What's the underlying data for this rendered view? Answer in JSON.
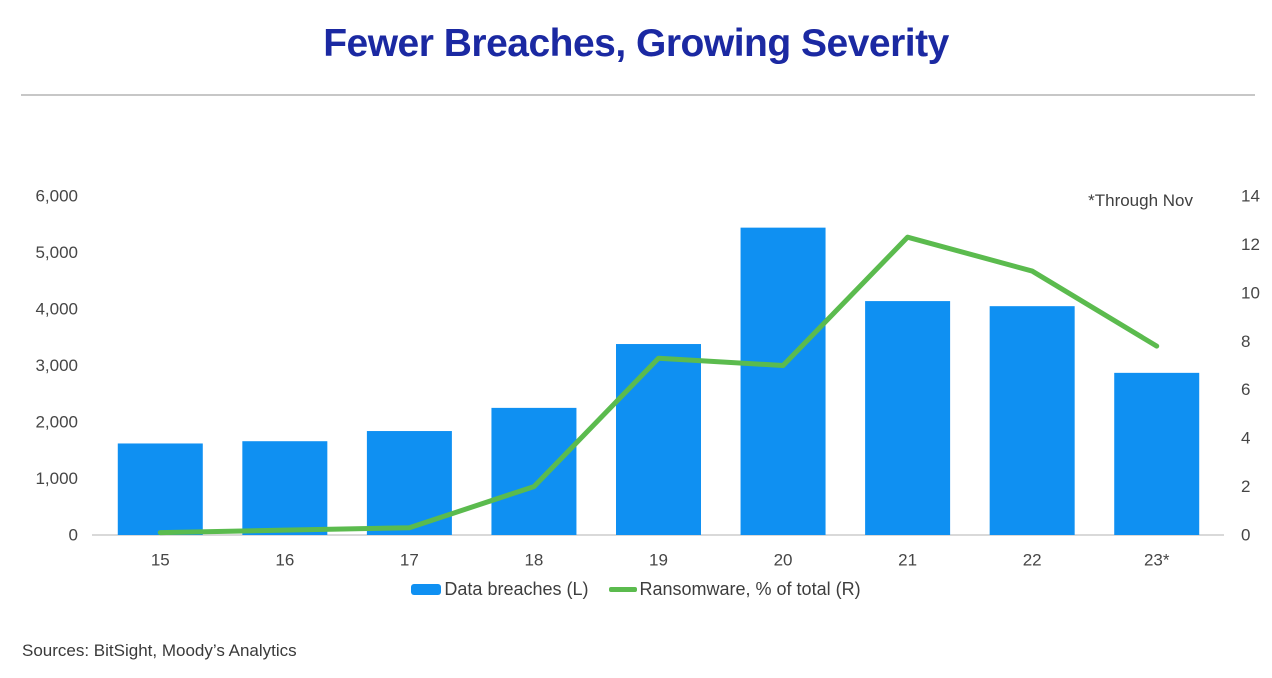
{
  "title": "Fewer Breaches, Growing Severity",
  "annotation": "*Through Nov",
  "source_note": "Sources: BitSight, Moody’s Analytics",
  "colors": {
    "title": "#1b29a2",
    "bar": "#0f90f2",
    "line": "#5bbb4e",
    "axis_text": "#464646",
    "baseline": "#d9d9d9"
  },
  "chart_data": {
    "type": "bar",
    "subtype": "combo bar + line, dual axis",
    "title": "Fewer Breaches, Growing Severity",
    "categories": [
      "15",
      "16",
      "17",
      "18",
      "19",
      "20",
      "21",
      "22",
      "23*"
    ],
    "series": [
      {
        "name": "Data breaches (L)",
        "type": "bar",
        "axis": "left",
        "values": [
          1620,
          1660,
          1840,
          2250,
          3380,
          5440,
          4140,
          4050,
          2870
        ]
      },
      {
        "name": "Ransomware, % of total (R)",
        "type": "line",
        "axis": "right",
        "values": [
          0.1,
          0.2,
          0.3,
          2.0,
          7.3,
          7.0,
          12.3,
          10.9,
          7.8
        ]
      }
    ],
    "left_axis": {
      "min": 0,
      "max": 6000,
      "tick_step": 1000,
      "ticks": [
        "0",
        "1,000",
        "2,000",
        "3,000",
        "4,000",
        "5,000",
        "6,000"
      ]
    },
    "right_axis": {
      "min": 0,
      "max": 14,
      "tick_step": 2,
      "ticks": [
        "0",
        "2",
        "4",
        "6",
        "8",
        "10",
        "12",
        "14"
      ]
    },
    "xlabel": "",
    "ylabel": "",
    "grid": false,
    "legend_position": "bottom",
    "annotation": "*Through Nov"
  }
}
